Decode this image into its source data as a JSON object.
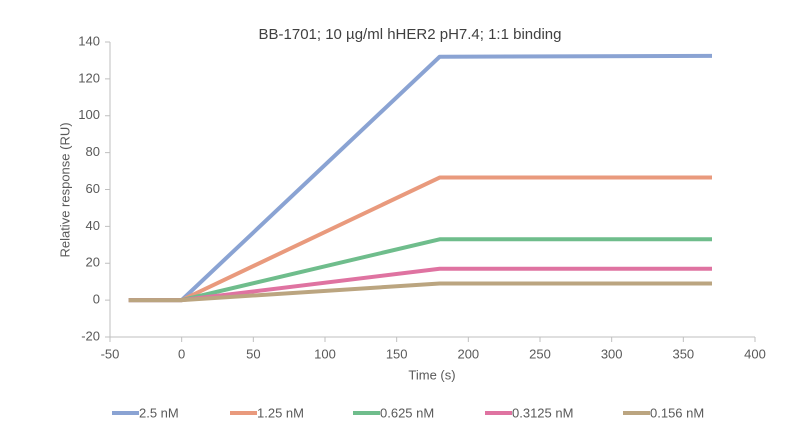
{
  "chart_data": {
    "type": "line",
    "title": "BB-1701; 10 µg/ml hHER2 pH7.4; 1:1 binding",
    "x_label": "Time (s)",
    "y_label": "Relative response (RU)",
    "x": [
      -37,
      0,
      180,
      370
    ],
    "series": [
      {
        "name": "2.5 nM",
        "color": "#8aa3d3",
        "values": [
          0,
          0,
          132,
          132.5
        ]
      },
      {
        "name": "1.25 nM",
        "color": "#e99a7d",
        "values": [
          0,
          0,
          66.5,
          66.5
        ]
      },
      {
        "name": "0.625 nM",
        "color": "#6fbd8c",
        "values": [
          0,
          0,
          33,
          33
        ]
      },
      {
        "name": "0.3125 nM",
        "color": "#df73a1",
        "values": [
          0,
          0,
          17,
          17
        ]
      },
      {
        "name": "0.156 nM",
        "color": "#bba580",
        "values": [
          0,
          0,
          9,
          9
        ]
      }
    ],
    "xlim": [
      -50,
      400
    ],
    "xticks": [
      -50,
      0,
      50,
      100,
      150,
      200,
      250,
      300,
      350,
      400
    ],
    "ylim": [
      -20,
      140
    ],
    "yticks": [
      -20,
      0,
      20,
      40,
      60,
      80,
      100,
      120,
      140
    ],
    "legend": "bottom"
  }
}
